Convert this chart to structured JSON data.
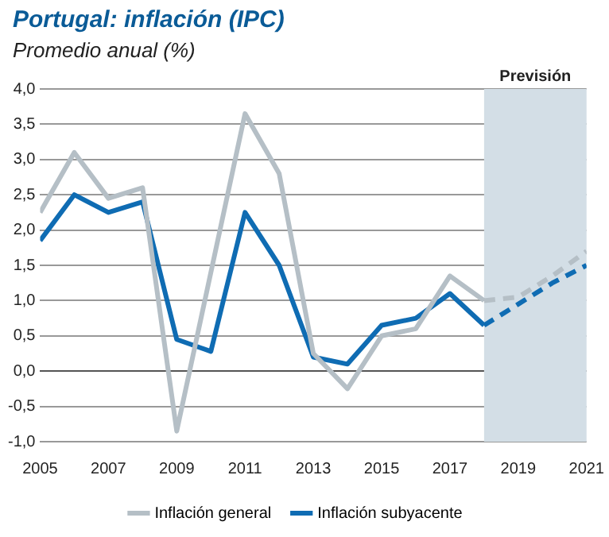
{
  "chart_data": {
    "type": "line",
    "title": "Portugal: inflación (IPC)",
    "subtitle": "Promedio anual (%)",
    "x": [
      2005,
      2006,
      2007,
      2008,
      2009,
      2010,
      2011,
      2012,
      2013,
      2014,
      2015,
      2016,
      2017,
      2018
    ],
    "series": [
      {
        "name": "Inflación general",
        "color": "#b5bfc6",
        "values": [
          2.25,
          3.1,
          2.45,
          2.6,
          -0.85,
          1.4,
          3.65,
          2.8,
          0.25,
          -0.25,
          0.5,
          0.6,
          1.35,
          1.0
        ]
      },
      {
        "name": "Inflación subyacente",
        "color": "#0f6cb3",
        "values": [
          1.85,
          2.5,
          2.25,
          2.4,
          0.45,
          0.28,
          2.25,
          1.5,
          0.2,
          0.1,
          0.65,
          0.75,
          1.1,
          0.65
        ]
      },
      {
        "color": "#b5bfc6",
        "x": [
          2018,
          2019,
          2020,
          2021
        ],
        "values": [
          1.0,
          1.05,
          1.35,
          1.7
        ],
        "line_style": "dashed"
      },
      {
        "color": "#0f6cb3",
        "x": [
          2018,
          2019,
          2020,
          2021
        ],
        "values": [
          0.65,
          0.95,
          1.25,
          1.5
        ],
        "line_style": "dashed"
      }
    ],
    "xlim": [
      2005,
      2021
    ],
    "xticks": [
      2005,
      2007,
      2009,
      2011,
      2013,
      2015,
      2017,
      2019,
      2021
    ],
    "ylim": [
      -1,
      4
    ],
    "yticks": [
      {
        "value": -1,
        "label": "-1,0"
      },
      {
        "value": -0.5,
        "label": "-0,5"
      },
      {
        "value": 0,
        "label": "0,0"
      },
      {
        "value": 0.5,
        "label": "0,5"
      },
      {
        "value": 1,
        "label": "1,0"
      },
      {
        "value": 1.5,
        "label": "1,5"
      },
      {
        "value": 2,
        "label": "2,0"
      },
      {
        "value": 2.5,
        "label": "2,5"
      },
      {
        "value": 3,
        "label": "3,0"
      },
      {
        "value": 3.5,
        "label": "3,5"
      },
      {
        "value": 4,
        "label": "4,0"
      }
    ],
    "bands": [
      {
        "axis": "x",
        "from": 2018,
        "to": 2021,
        "label": "Previsión",
        "color": "#d3dee6"
      }
    ],
    "grid": "y",
    "legend": "bottom",
    "marker": "none",
    "line_style": "solid"
  }
}
